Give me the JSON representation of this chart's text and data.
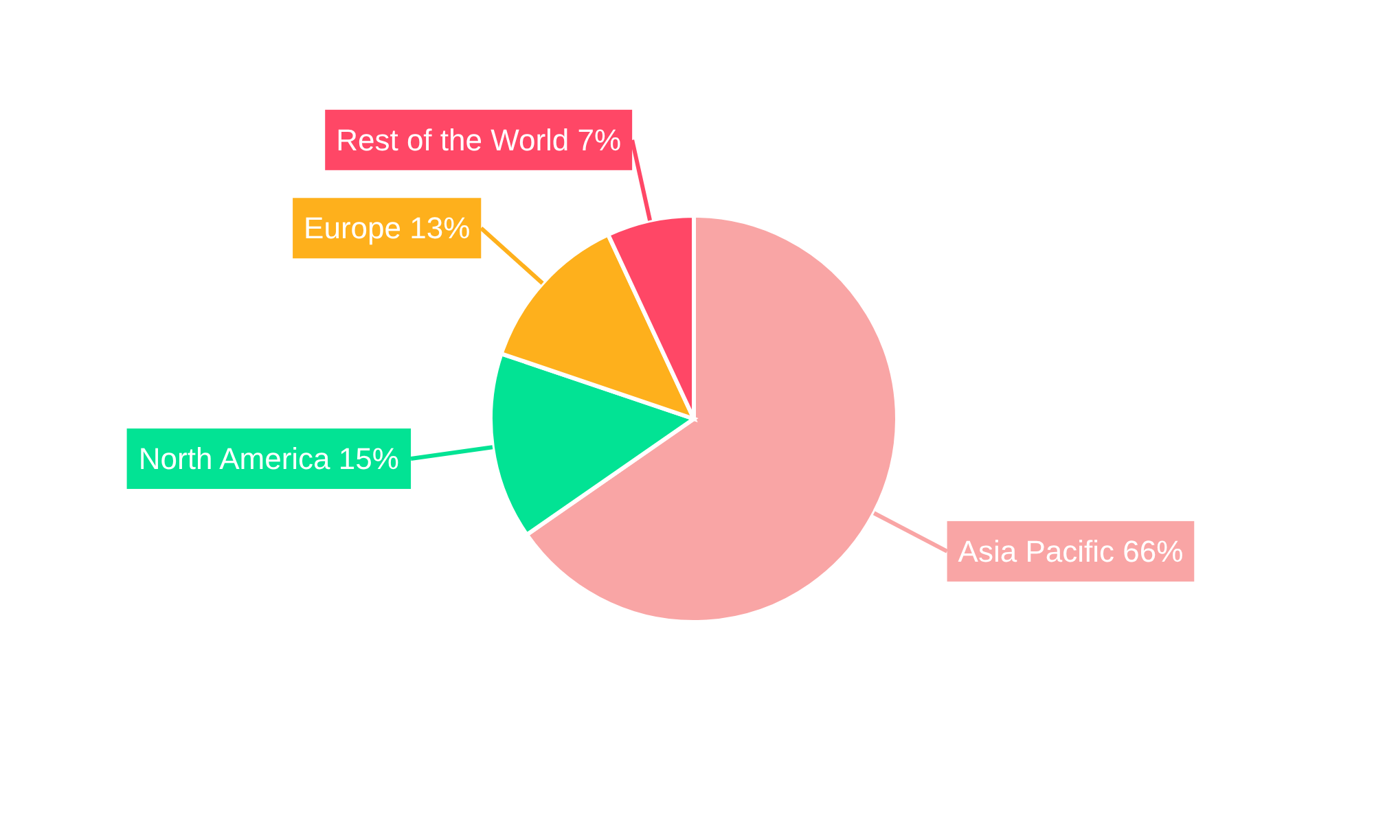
{
  "chart_data": {
    "type": "pie",
    "categories": [
      "Asia Pacific",
      "North America",
      "Europe",
      "Rest of the World"
    ],
    "values": [
      66,
      15,
      13,
      7
    ],
    "value_labels": [
      "66%",
      "15%",
      "13%",
      "7%"
    ],
    "colors": [
      "#f9a5a5",
      "#02e394",
      "#feb01c",
      "#ff4766"
    ],
    "legend": false
  }
}
